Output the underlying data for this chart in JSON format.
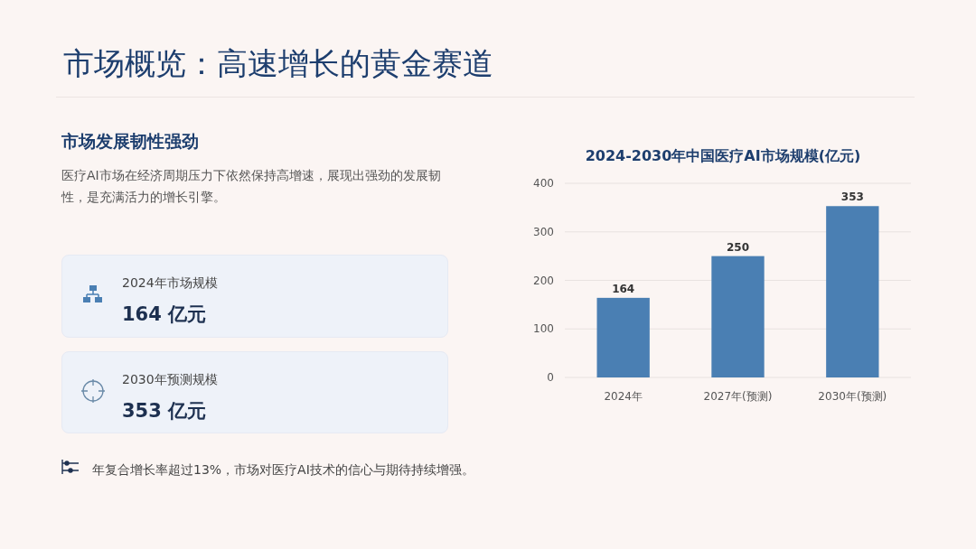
{
  "chart_data": {
    "type": "bar",
    "title": "2024-2030年中国医疗AI市场规模(亿元)",
    "categories": [
      "2024年",
      "2027年(预测)",
      "2030年(预测)"
    ],
    "values": [
      164,
      250,
      353
    ],
    "color": "#4a7fb3",
    "ylim": [
      0,
      400
    ],
    "yticks": [
      0,
      100,
      200,
      300,
      400
    ],
    "grid": "y",
    "data_labels": true,
    "annotations": [
      "市场概览：高速增长的黄金赛道",
      "市场发展韧性强劲",
      "医疗AI市场在经济周期压力下依然保持高增速，展现出强劲的发展韧性，是充满活力的增长引擎。",
      "2024年市场规模",
      "164 亿元",
      "2030年预测规模",
      "353 亿元",
      "年复合增长率超过13%，市场对医疗AI技术的信心与期待持续增强。"
    ]
  }
}
